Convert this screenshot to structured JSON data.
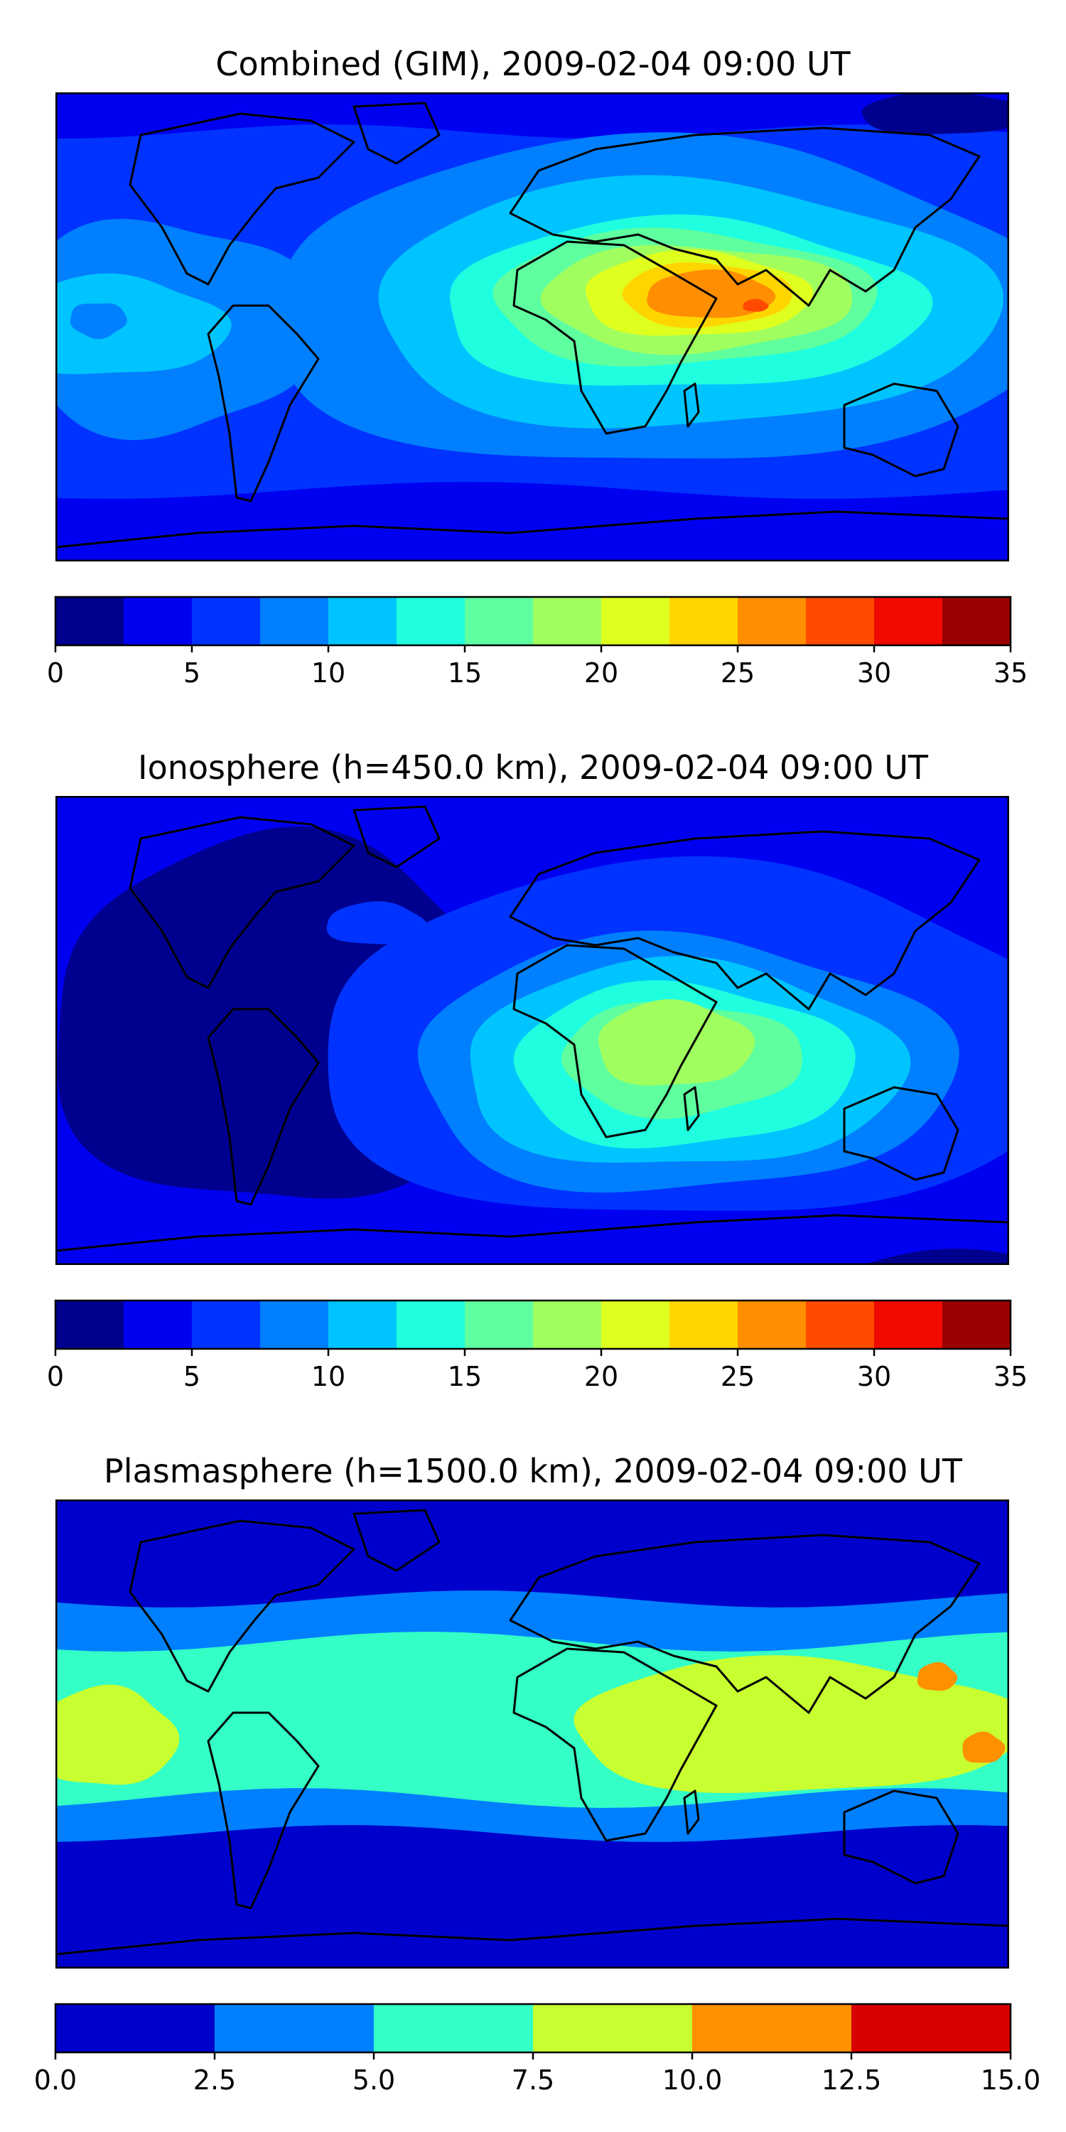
{
  "panels": [
    {
      "id": "combined",
      "title": "Combined (GIM), 2009-02-04 09:00 UT",
      "field": "combined",
      "colorbar": {
        "levels": [
          0,
          2.5,
          5,
          7.5,
          10,
          12.5,
          15,
          17.5,
          20,
          22.5,
          25,
          27.5,
          30,
          32.5,
          35
        ],
        "colors": [
          "#00008f",
          "#0000f0",
          "#0033ff",
          "#0080ff",
          "#00c4ff",
          "#1fffdf",
          "#5fff9f",
          "#a0ff5f",
          "#dfff1f",
          "#ffd500",
          "#ff8e00",
          "#ff4a00",
          "#f00a00",
          "#9a0000"
        ],
        "tick_labels": [
          "0",
          "5",
          "10",
          "15",
          "20",
          "25",
          "30",
          "35"
        ],
        "tick_values": [
          0,
          5,
          10,
          15,
          20,
          25,
          30,
          35
        ]
      }
    },
    {
      "id": "ionosphere",
      "title": "Ionosphere  (h=450.0 km), 2009-02-04 09:00 UT",
      "field": "ionosphere",
      "colorbar": {
        "levels": [
          0,
          2.5,
          5,
          7.5,
          10,
          12.5,
          15,
          17.5,
          20,
          22.5,
          25,
          27.5,
          30,
          32.5,
          35
        ],
        "colors": [
          "#00008f",
          "#0000f0",
          "#0033ff",
          "#0080ff",
          "#00c4ff",
          "#1fffdf",
          "#5fff9f",
          "#a0ff5f",
          "#dfff1f",
          "#ffd500",
          "#ff8e00",
          "#ff4a00",
          "#f00a00",
          "#9a0000"
        ],
        "tick_labels": [
          "0",
          "5",
          "10",
          "15",
          "20",
          "25",
          "30",
          "35"
        ],
        "tick_values": [
          0,
          5,
          10,
          15,
          20,
          25,
          30,
          35
        ]
      }
    },
    {
      "id": "plasmasphere",
      "title": "Plasmasphere (h=1500.0 km), 2009-02-04 09:00 UT",
      "field": "plasmasphere",
      "colorbar": {
        "levels": [
          0,
          2.5,
          5,
          7.5,
          10,
          12.5,
          15
        ],
        "colors": [
          "#0000cd",
          "#0080ff",
          "#33ffc7",
          "#c7ff30",
          "#ff9000",
          "#d80000"
        ],
        "tick_labels": [
          "0.0",
          "2.5",
          "5.0",
          "7.5",
          "10.0",
          "12.5",
          "15.0"
        ],
        "tick_values": [
          0,
          2.5,
          5,
          7.5,
          10,
          12.5,
          15
        ]
      }
    }
  ]
}
